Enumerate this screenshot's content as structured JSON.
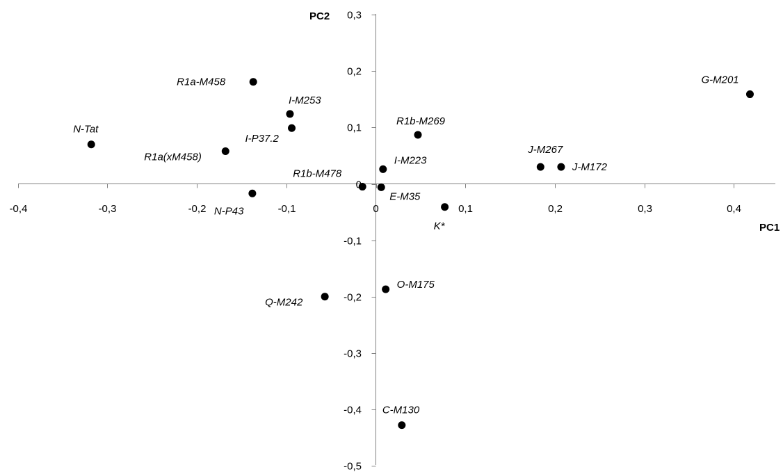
{
  "chart_data": {
    "type": "scatter",
    "xlabel": "PC1",
    "ylabel": "PC2",
    "xlim": [
      -0.4,
      0.45
    ],
    "ylim": [
      -0.5,
      0.3
    ],
    "x_ticks": [
      {
        "value": -0.4,
        "label": "-0,4"
      },
      {
        "value": -0.3,
        "label": "-0,3"
      },
      {
        "value": -0.2,
        "label": "-0,2"
      },
      {
        "value": -0.1,
        "label": "-0,1"
      },
      {
        "value": 0,
        "label": "0"
      },
      {
        "value": 0.1,
        "label": "0,1"
      },
      {
        "value": 0.2,
        "label": "0,2"
      },
      {
        "value": 0.3,
        "label": "0,3"
      },
      {
        "value": 0.4,
        "label": "0,4"
      }
    ],
    "y_ticks": [
      {
        "value": 0.3,
        "label": "0,3"
      },
      {
        "value": 0.2,
        "label": "0,2"
      },
      {
        "value": 0.1,
        "label": "0,1"
      },
      {
        "value": 0,
        "label": "0"
      },
      {
        "value": -0.1,
        "label": "-0,1"
      },
      {
        "value": -0.2,
        "label": "-0,2"
      },
      {
        "value": -0.3,
        "label": "-0,3"
      },
      {
        "value": -0.4,
        "label": "-0,4"
      },
      {
        "value": -0.5,
        "label": "-0,5"
      }
    ],
    "grid": false,
    "points": [
      {
        "label": "G-M201",
        "x": 0.418,
        "y": 0.159
      },
      {
        "label": "R1a-M458",
        "x": -0.137,
        "y": 0.181
      },
      {
        "label": "I-M253",
        "x": -0.096,
        "y": 0.124
      },
      {
        "label": "I-P37.2",
        "x": -0.094,
        "y": 0.099
      },
      {
        "label": "R1b-M269",
        "x": 0.047,
        "y": 0.087
      },
      {
        "label": "N-Tat",
        "x": -0.318,
        "y": 0.07
      },
      {
        "label": "R1a(xM458)",
        "x": -0.168,
        "y": 0.058
      },
      {
        "label": "J-M267",
        "x": 0.184,
        "y": 0.03
      },
      {
        "label": "J-M172",
        "x": 0.207,
        "y": 0.03
      },
      {
        "label": "I-M223",
        "x": 0.008,
        "y": 0.026
      },
      {
        "label": "R1b-M478",
        "x": -0.015,
        "y": -0.005
      },
      {
        "label": "E-M35",
        "x": 0.006,
        "y": -0.006
      },
      {
        "label": "N-P43",
        "x": -0.138,
        "y": -0.017
      },
      {
        "label": "K*",
        "x": 0.077,
        "y": -0.041
      },
      {
        "label": "O-M175",
        "x": 0.011,
        "y": -0.187
      },
      {
        "label": "Q-M242",
        "x": -0.057,
        "y": -0.2
      },
      {
        "label": "C-M130",
        "x": 0.029,
        "y": -0.428
      }
    ]
  }
}
